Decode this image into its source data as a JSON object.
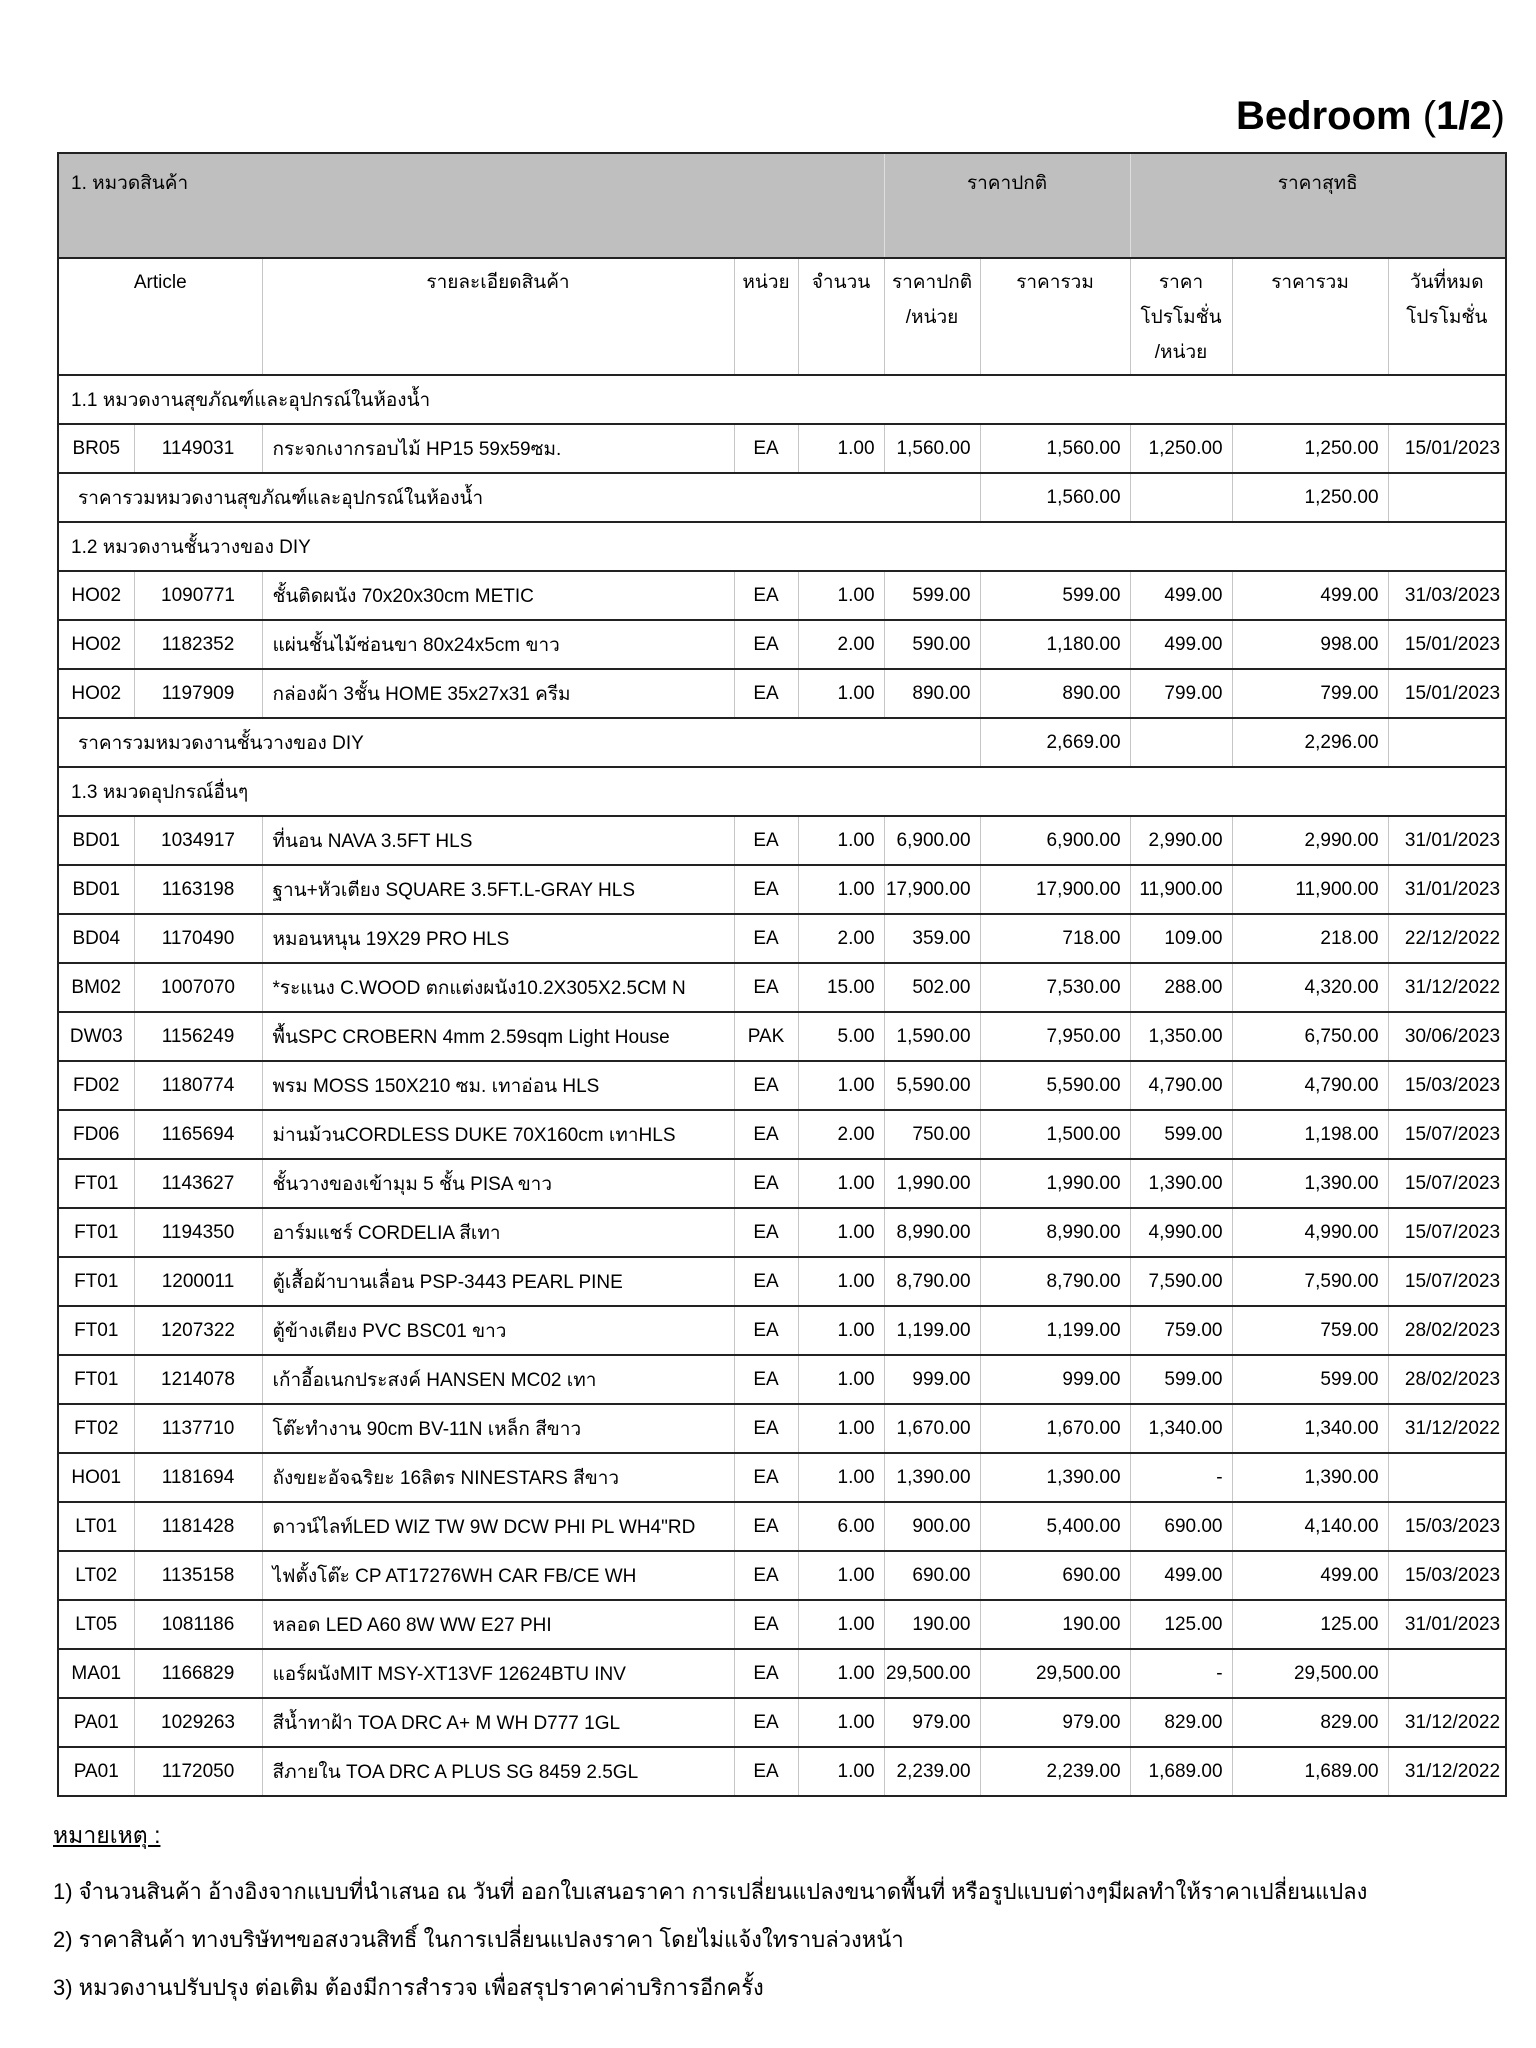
{
  "page_title": {
    "name": "Bedroom",
    "open": "(",
    "number": "1/2",
    "close": ")"
  },
  "table": {
    "group_header": {
      "category": "1. หมวดสินค้า",
      "normal_price": "ราคาปกติ",
      "net_price": "ราคาสุทธิ"
    },
    "column_headers": {
      "article": "Article",
      "description": "รายละเอียดสินค้า",
      "unit": "หน่วย",
      "quantity": "จำนวน",
      "normal_unit_price": "ราคาปกติ\n/หน่วย",
      "normal_total": "ราคารวม",
      "promo_unit_price": "ราคา\nโปรโมชั่น\n/หน่วย",
      "promo_total": "ราคารวม",
      "promo_end": "วันที่หมด\nโปรโมชั่น"
    },
    "sections": [
      {
        "title": "1.1 หมวดงานสุขภัณฑ์และอุปกรณ์ในห้องน้ำ",
        "rows": [
          {
            "code": "BR05",
            "sku": "1149031",
            "description": "กระจกเงากรอบไม้ HP15 59x59ซม.",
            "unit": "EA",
            "quantity": "1.00",
            "normal_unit_price": "1,560.00",
            "normal_total": "1,560.00",
            "promo_unit_price": "1,250.00",
            "promo_total": "1,250.00",
            "promo_end": "15/01/2023"
          }
        ],
        "subtotal": {
          "label": "ราคารวมหมวดงานสุขภัณฑ์และอุปกรณ์ในห้องน้ำ",
          "normal_total": "1,560.00",
          "promo_total": "1,250.00"
        }
      },
      {
        "title": "1.2 หมวดงานชั้นวางของ DIY",
        "rows": [
          {
            "code": "HO02",
            "sku": "1090771",
            "description": "ชั้นติดผนัง 70x20x30cm METIC",
            "unit": "EA",
            "quantity": "1.00",
            "normal_unit_price": "599.00",
            "normal_total": "599.00",
            "promo_unit_price": "499.00",
            "promo_total": "499.00",
            "promo_end": "31/03/2023"
          },
          {
            "code": "HO02",
            "sku": "1182352",
            "description": "แผ่นชั้นไม้ซ่อนขา 80x24x5cm ขาว",
            "unit": "EA",
            "quantity": "2.00",
            "normal_unit_price": "590.00",
            "normal_total": "1,180.00",
            "promo_unit_price": "499.00",
            "promo_total": "998.00",
            "promo_end": "15/01/2023"
          },
          {
            "code": "HO02",
            "sku": "1197909",
            "description": "กล่องผ้า 3ชั้น HOME 35x27x31 ครีม",
            "unit": "EA",
            "quantity": "1.00",
            "normal_unit_price": "890.00",
            "normal_total": "890.00",
            "promo_unit_price": "799.00",
            "promo_total": "799.00",
            "promo_end": "15/01/2023"
          }
        ],
        "subtotal": {
          "label": "ราคารวมหมวดงานชั้นวางของ DIY",
          "normal_total": "2,669.00",
          "promo_total": "2,296.00"
        }
      },
      {
        "title": "1.3 หมวดอุปกรณ์อื่นๆ",
        "rows": [
          {
            "code": "BD01",
            "sku": "1034917",
            "description": "ที่นอน NAVA 3.5FT HLS",
            "unit": "EA",
            "quantity": "1.00",
            "normal_unit_price": "6,900.00",
            "normal_total": "6,900.00",
            "promo_unit_price": "2,990.00",
            "promo_total": "2,990.00",
            "promo_end": "31/01/2023"
          },
          {
            "code": "BD01",
            "sku": "1163198",
            "description": "ฐาน+หัวเตียง SQUARE 3.5FT.L-GRAY HLS",
            "unit": "EA",
            "quantity": "1.00",
            "normal_unit_price": "17,900.00",
            "normal_total": "17,900.00",
            "promo_unit_price": "11,900.00",
            "promo_total": "11,900.00",
            "promo_end": "31/01/2023"
          },
          {
            "code": "BD04",
            "sku": "1170490",
            "description": "หมอนหนุน 19X29 PRO HLS",
            "unit": "EA",
            "quantity": "2.00",
            "normal_unit_price": "359.00",
            "normal_total": "718.00",
            "promo_unit_price": "109.00",
            "promo_total": "218.00",
            "promo_end": "22/12/2022"
          },
          {
            "code": "BM02",
            "sku": "1007070",
            "description": "*ระแนง C.WOOD ตกแต่งผนัง10.2X305X2.5CM N",
            "unit": "EA",
            "quantity": "15.00",
            "normal_unit_price": "502.00",
            "normal_total": "7,530.00",
            "promo_unit_price": "288.00",
            "promo_total": "4,320.00",
            "promo_end": "31/12/2022"
          },
          {
            "code": "DW03",
            "sku": "1156249",
            "description": "พื้นSPC CROBERN 4mm 2.59sqm Light House",
            "unit": "PAK",
            "quantity": "5.00",
            "normal_unit_price": "1,590.00",
            "normal_total": "7,950.00",
            "promo_unit_price": "1,350.00",
            "promo_total": "6,750.00",
            "promo_end": "30/06/2023"
          },
          {
            "code": "FD02",
            "sku": "1180774",
            "description": "พรม MOSS 150X210 ซม. เทาอ่อน HLS",
            "unit": "EA",
            "quantity": "1.00",
            "normal_unit_price": "5,590.00",
            "normal_total": "5,590.00",
            "promo_unit_price": "4,790.00",
            "promo_total": "4,790.00",
            "promo_end": "15/03/2023"
          },
          {
            "code": "FD06",
            "sku": "1165694",
            "description": "ม่านม้วนCORDLESS DUKE 70X160cm เทาHLS",
            "unit": "EA",
            "quantity": "2.00",
            "normal_unit_price": "750.00",
            "normal_total": "1,500.00",
            "promo_unit_price": "599.00",
            "promo_total": "1,198.00",
            "promo_end": "15/07/2023"
          },
          {
            "code": "FT01",
            "sku": "1143627",
            "description": "ชั้นวางของเข้ามุม 5 ชั้น PISA ขาว",
            "unit": "EA",
            "quantity": "1.00",
            "normal_unit_price": "1,990.00",
            "normal_total": "1,990.00",
            "promo_unit_price": "1,390.00",
            "promo_total": "1,390.00",
            "promo_end": "15/07/2023"
          },
          {
            "code": "FT01",
            "sku": "1194350",
            "description": "อาร์มแชร์ CORDELIA สีเทา",
            "unit": "EA",
            "quantity": "1.00",
            "normal_unit_price": "8,990.00",
            "normal_total": "8,990.00",
            "promo_unit_price": "4,990.00",
            "promo_total": "4,990.00",
            "promo_end": "15/07/2023"
          },
          {
            "code": "FT01",
            "sku": "1200011",
            "description": "ตู้เสื้อผ้าบานเลื่อน PSP-3443 PEARL PINE",
            "unit": "EA",
            "quantity": "1.00",
            "normal_unit_price": "8,790.00",
            "normal_total": "8,790.00",
            "promo_unit_price": "7,590.00",
            "promo_total": "7,590.00",
            "promo_end": "15/07/2023"
          },
          {
            "code": "FT01",
            "sku": "1207322",
            "description": "ตู้ข้างเตียง PVC BSC01  ขาว",
            "unit": "EA",
            "quantity": "1.00",
            "normal_unit_price": "1,199.00",
            "normal_total": "1,199.00",
            "promo_unit_price": "759.00",
            "promo_total": "759.00",
            "promo_end": "28/02/2023"
          },
          {
            "code": "FT01",
            "sku": "1214078",
            "description": "เก้าอี้อเนกประสงค์ HANSEN MC02  เทา",
            "unit": "EA",
            "quantity": "1.00",
            "normal_unit_price": "999.00",
            "normal_total": "999.00",
            "promo_unit_price": "599.00",
            "promo_total": "599.00",
            "promo_end": "28/02/2023"
          },
          {
            "code": "FT02",
            "sku": "1137710",
            "description": "โต๊ะทำงาน 90cm  BV-11N เหล็ก สีขาว",
            "unit": "EA",
            "quantity": "1.00",
            "normal_unit_price": "1,670.00",
            "normal_total": "1,670.00",
            "promo_unit_price": "1,340.00",
            "promo_total": "1,340.00",
            "promo_end": "31/12/2022"
          },
          {
            "code": "HO01",
            "sku": "1181694",
            "description": "ถังขยะอัจฉริยะ 16ลิตร NINESTARS สีขาว",
            "unit": "EA",
            "quantity": "1.00",
            "normal_unit_price": "1,390.00",
            "normal_total": "1,390.00",
            "promo_unit_price": "-",
            "promo_total": "1,390.00",
            "promo_end": ""
          },
          {
            "code": "LT01",
            "sku": "1181428",
            "description": "ดาวน์ไลท์LED WIZ TW 9W DCW PHI PL WH4\"RD",
            "unit": "EA",
            "quantity": "6.00",
            "normal_unit_price": "900.00",
            "normal_total": "5,400.00",
            "promo_unit_price": "690.00",
            "promo_total": "4,140.00",
            "promo_end": "15/03/2023"
          },
          {
            "code": "LT02",
            "sku": "1135158",
            "description": "ไฟตั้งโต๊ะ CP AT17276WH CAR FB/CE WH",
            "unit": "EA",
            "quantity": "1.00",
            "normal_unit_price": "690.00",
            "normal_total": "690.00",
            "promo_unit_price": "499.00",
            "promo_total": "499.00",
            "promo_end": "15/03/2023"
          },
          {
            "code": "LT05",
            "sku": "1081186",
            "description": "หลอด LED A60 8W WW E27 PHI",
            "unit": "EA",
            "quantity": "1.00",
            "normal_unit_price": "190.00",
            "normal_total": "190.00",
            "promo_unit_price": "125.00",
            "promo_total": "125.00",
            "promo_end": "31/01/2023"
          },
          {
            "code": "MA01",
            "sku": "1166829",
            "description": "แอร์ผนังMIT MSY-XT13VF 12624BTU INV",
            "unit": "EA",
            "quantity": "1.00",
            "normal_unit_price": "29,500.00",
            "normal_total": "29,500.00",
            "promo_unit_price": "-",
            "promo_total": "29,500.00",
            "promo_end": ""
          },
          {
            "code": "PA01",
            "sku": "1029263",
            "description": "สีน้ำทาฝ้า TOA DRC A+ M WH D777 1GL",
            "unit": "EA",
            "quantity": "1.00",
            "normal_unit_price": "979.00",
            "normal_total": "979.00",
            "promo_unit_price": "829.00",
            "promo_total": "829.00",
            "promo_end": "31/12/2022"
          },
          {
            "code": "PA01",
            "sku": "1172050",
            "description": "สีภายใน TOA DRC A PLUS SG 8459 2.5GL",
            "unit": "EA",
            "quantity": "1.00",
            "normal_unit_price": "2,239.00",
            "normal_total": "2,239.00",
            "promo_unit_price": "1,689.00",
            "promo_total": "1,689.00",
            "promo_end": "31/12/2022"
          }
        ],
        "subtotal": null
      }
    ]
  },
  "notes": {
    "heading": "หมายเหตุ :",
    "items": [
      "1) จำนวนสินค้า อ้างอิงจากแบบที่นำเสนอ ณ วันที่ ออกใบเสนอราคา การเปลี่ยนแปลงขนาดพื้นที่ หรือรูปแบบต่างๆมีผลทำให้ราคาเปลี่ยนแปลง",
      "2) ราคาสินค้า ทางบริษัทฯขอสงวนสิทธิ์ ในการเปลี่ยนแปลงราคา โดยไม่แจ้งใทราบล่วงหน้า",
      "3) หมวดงานปรับปรุง ต่อเติม ต้องมีการสำรวจ เพื่อสรุปราคาค่าบริการอีกครั้ง"
    ]
  }
}
